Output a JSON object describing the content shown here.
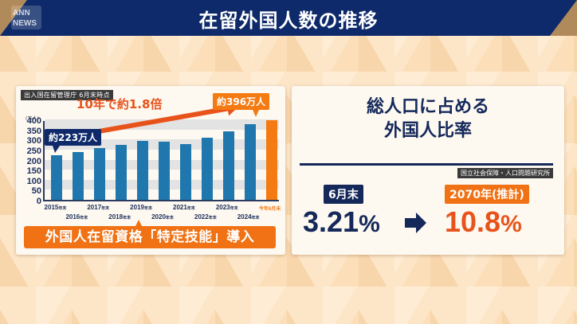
{
  "header": {
    "title": "在留外国人数の推移",
    "logo_lines": [
      "ANN",
      "NEWS"
    ]
  },
  "left_panel": {
    "source": "出入国在留管理庁 6月末時点",
    "unit": "(万人)",
    "growth_text": "10年で約1.8倍",
    "callout_start": "約223万人",
    "callout_end": "約396万人",
    "banner": "外国人在留資格「特定技能」導入",
    "year_suffix": "年末"
  },
  "right_panel": {
    "title_line1": "総人口に占める",
    "title_line2": "外国人比率",
    "source": "国立社会保障・人口問題研究所",
    "tag_now": "6月末",
    "tag_future": "2070年(推計)",
    "value_now": "3.21",
    "value_future": "10.8",
    "percent": "%"
  },
  "colors": {
    "navy": "#0e2a6a",
    "bar_blue": "#1f77ad",
    "highlight_orange": "#f47a12",
    "accent_red_orange": "#e8531b"
  },
  "chart_data": {
    "type": "bar",
    "title": "在留外国人数の推移",
    "ylabel": "(万人)",
    "xlabel": "",
    "ylim": [
      0,
      400
    ],
    "yticks": [
      0,
      50,
      100,
      150,
      200,
      250,
      300,
      350,
      400
    ],
    "grid": "horizontal bands",
    "categories": [
      "2015年末",
      "2016年末",
      "2017年末",
      "2018年末",
      "2019年末",
      "2020年末",
      "2021年末",
      "2022年末",
      "2023年末",
      "2024年末",
      "今年6月末"
    ],
    "values": [
      223,
      238,
      256,
      273,
      293,
      289,
      276,
      308,
      341,
      377,
      396
    ],
    "highlight_index": 10,
    "annotations": [
      "約223万人",
      "約396万人",
      "10年で約1.8倍",
      "外国人在留資格「特定技能」導入 (2019)"
    ]
  }
}
